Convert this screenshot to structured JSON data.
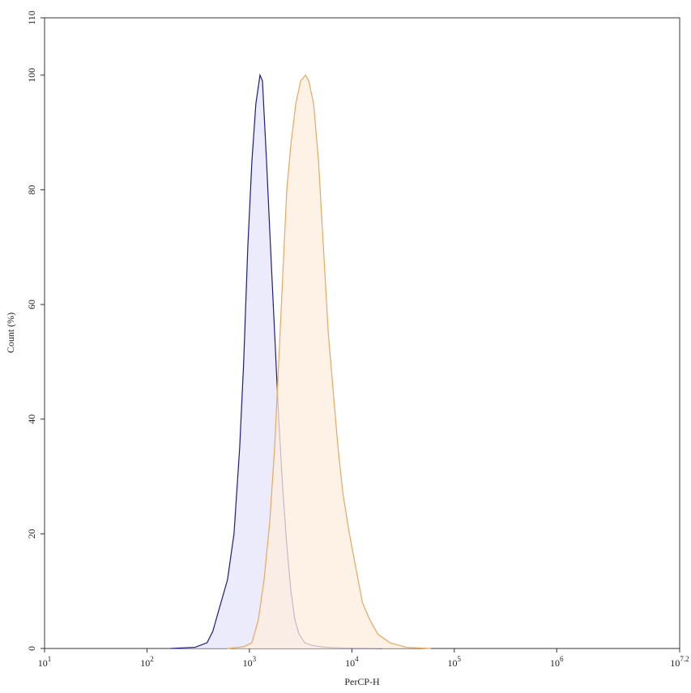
{
  "chart_data": {
    "type": "histogram-overlay",
    "x_label": "PerCP-H",
    "y_label": "Count (%)",
    "x_log": true,
    "xlim": [
      10,
      15848932
    ],
    "xticks": [
      {
        "value": 10,
        "label": "10",
        "exponent": "1"
      },
      {
        "value": 100,
        "label": "10",
        "exponent": "2"
      },
      {
        "value": 1000,
        "label": "10",
        "exponent": "3"
      },
      {
        "value": 10000,
        "label": "10",
        "exponent": "4"
      },
      {
        "value": 100000,
        "label": "10",
        "exponent": "5"
      },
      {
        "value": 1000000,
        "label": "10",
        "exponent": "6"
      },
      {
        "value": 15848932,
        "label": "10",
        "exponent": "7.2"
      }
    ],
    "ylim": [
      0,
      110
    ],
    "yticks": [
      0,
      20,
      40,
      60,
      80,
      100,
      110
    ],
    "series": [
      {
        "color": "#1c1c8a",
        "fill": "#e4e4fa",
        "x": [
          170,
          294,
          386,
          439,
          508,
          611,
          707,
          803,
          879,
          964,
          1057,
          1156,
          1268,
          1340,
          1469,
          1607,
          1762,
          1932,
          2113,
          2317,
          2541,
          2780,
          3048,
          3467,
          4159,
          5470,
          7889,
          19679
        ],
        "values": [
          0,
          0.2,
          1,
          3,
          7,
          12,
          20,
          35,
          50,
          70,
          85,
          95,
          100,
          99,
          85,
          70,
          55,
          40,
          28,
          18,
          10,
          5,
          2.5,
          1,
          0.5,
          0.2,
          0.1,
          0
        ]
      },
      {
        "color": "#e8a860",
        "fill": "#fdeedd",
        "x": [
          611,
          879,
          1057,
          1222,
          1390,
          1578,
          1762,
          1932,
          2113,
          2317,
          2541,
          2833,
          3162,
          3530,
          3796,
          4236,
          4728,
          5276,
          5888,
          6568,
          7328,
          8180,
          9460,
          10960,
          12680,
          14960,
          17960,
          23620,
          34060,
          58880
        ],
        "values": [
          0,
          0.3,
          1,
          5,
          12,
          22,
          35,
          50,
          65,
          80,
          88,
          95,
          99,
          100,
          99,
          95,
          85,
          70,
          55,
          45,
          35,
          27,
          20,
          14,
          8,
          5,
          2.5,
          1,
          0.2,
          0
        ]
      }
    ]
  }
}
